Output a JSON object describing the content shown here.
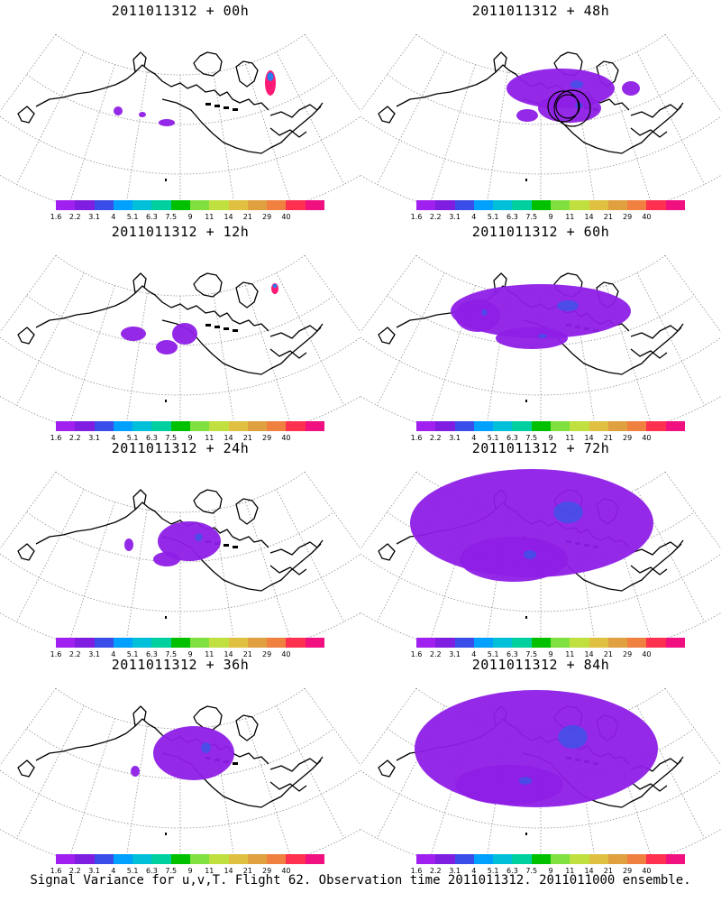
{
  "panels": [
    {
      "title": "2011011312 + 00h",
      "col": 0,
      "row": 0,
      "blobs": [
        [
          131,
          123,
          5,
          5
        ],
        [
          158,
          127,
          4,
          3
        ],
        [
          185,
          136,
          9,
          4
        ]
      ],
      "north": [
        [
          300,
          92,
          6,
          14
        ]
      ],
      "rings": false
    },
    {
      "title": "2011011312 + 48h",
      "col": 1,
      "row": 0,
      "blobs": [
        [
          622,
          98,
          60,
          22
        ],
        [
          632,
          120,
          35,
          16
        ],
        [
          585,
          128,
          12,
          7
        ],
        [
          700,
          98,
          10,
          8
        ]
      ],
      "north": [],
      "rings": true
    },
    {
      "title": "2011011312 + 12h",
      "col": 0,
      "row": 1,
      "blobs": [
        [
          148,
          370,
          14,
          8
        ],
        [
          205,
          370,
          14,
          12
        ],
        [
          185,
          385,
          12,
          8
        ]
      ],
      "north": [
        [
          305,
          320,
          4,
          6
        ]
      ],
      "rings": false
    },
    {
      "title": "2011011312 + 60h",
      "col": 1,
      "row": 1,
      "blobs": [
        [
          600,
          345,
          100,
          30
        ],
        [
          530,
          350,
          25,
          18
        ],
        [
          590,
          375,
          40,
          12
        ]
      ],
      "north": [],
      "rings": false
    },
    {
      "title": "2011011312 + 24h",
      "col": 0,
      "row": 2,
      "blobs": [
        [
          210,
          600,
          35,
          22
        ],
        [
          185,
          620,
          15,
          8
        ],
        [
          143,
          604,
          5,
          7
        ]
      ],
      "north": [],
      "rings": false
    },
    {
      "title": "2011011312 + 72h",
      "col": 1,
      "row": 2,
      "blobs": [
        [
          590,
          580,
          135,
          60
        ],
        [
          570,
          620,
          60,
          25
        ]
      ],
      "north": [],
      "rings": false
    },
    {
      "title": "2011011312 + 36h",
      "col": 0,
      "row": 3,
      "blobs": [
        [
          215,
          835,
          45,
          30
        ],
        [
          150,
          855,
          5,
          6
        ]
      ],
      "north": [],
      "rings": false
    },
    {
      "title": "2011011312 + 84h",
      "col": 1,
      "row": 3,
      "blobs": [
        [
          595,
          830,
          135,
          65
        ],
        [
          565,
          870,
          60,
          22
        ]
      ],
      "north": [],
      "rings": false
    }
  ],
  "colorbar": {
    "colors": [
      "#a020f0",
      "#7f1ee0",
      "#3b4de8",
      "#00a0ff",
      "#00bfd9",
      "#00d0a0",
      "#00c000",
      "#80e040",
      "#c0e040",
      "#e0c040",
      "#e0a040",
      "#f08040",
      "#ff3050",
      "#f01080"
    ],
    "labels": [
      "1.6",
      "2.2",
      "3.1",
      "4",
      "5.1",
      "6.3",
      "7.5",
      "9",
      "11",
      "14",
      "21",
      "29",
      "40"
    ]
  },
  "colors": {
    "field": "#8e1ee6",
    "field_core": "#3a55e8",
    "north_hot": "#ff1a75",
    "north_blue": "#2a7af0",
    "coast": "#000000",
    "grid": "#909090"
  },
  "footer": "Signal Variance for u,v,T. Flight 62. Observation time 2011011312. 2011011000 ensemble."
}
